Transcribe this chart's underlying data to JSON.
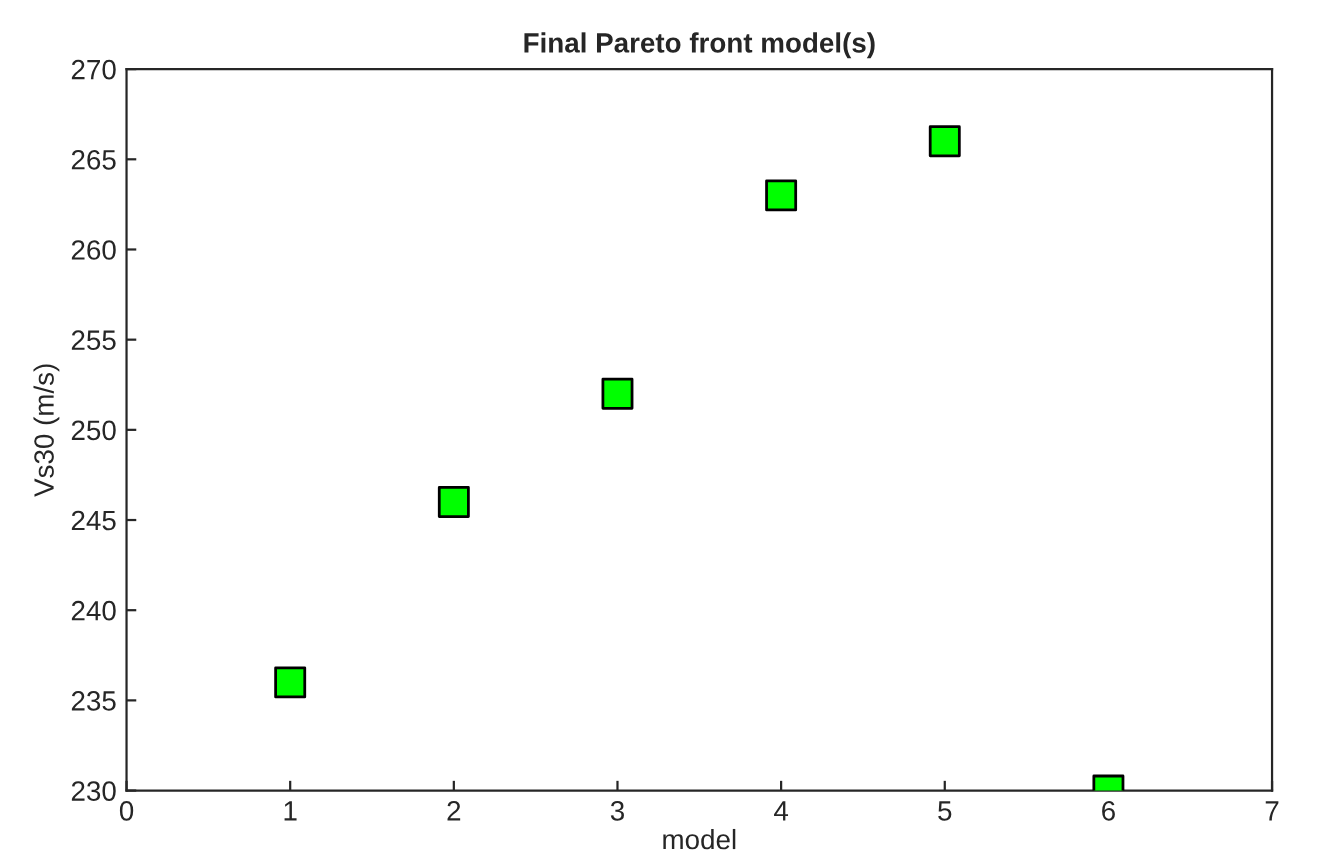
{
  "chart_data": {
    "type": "scatter",
    "title": "Final Pareto front model(s)",
    "xlabel": "model",
    "ylabel": "Vs30 (m/s)",
    "x": [
      1,
      2,
      3,
      4,
      5,
      6
    ],
    "series": [
      {
        "color": "#00ff00",
        "values": [
          236,
          246,
          252,
          263,
          266,
          230
        ]
      }
    ],
    "marker": "square",
    "xlim": [
      0,
      7
    ],
    "ylim": [
      230,
      270
    ],
    "xticks": [
      0,
      1,
      2,
      3,
      4,
      5,
      6,
      7
    ],
    "yticks": [
      230,
      235,
      240,
      245,
      250,
      255,
      260,
      265,
      270
    ],
    "grid": false,
    "legend": false
  }
}
